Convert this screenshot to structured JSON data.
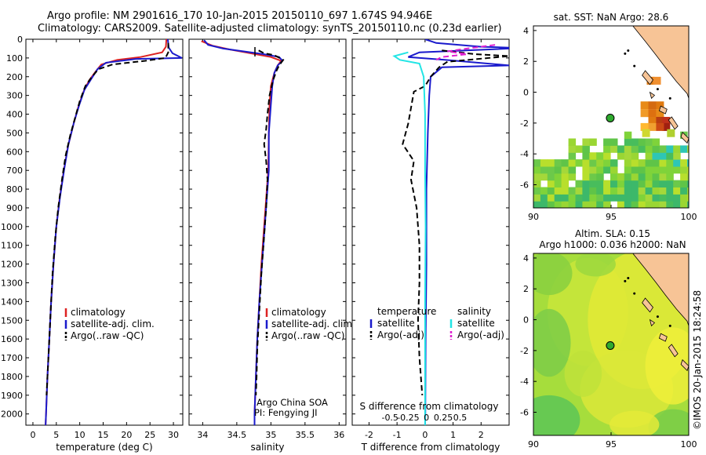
{
  "header": {
    "line1": "Argo profile: NM 2901616_170 10-Jan-2015 20150110_697 1.674S 94.946E",
    "line2": "Climatology: CARS2009. Satellite-adjusted climatology: synTS_20150110.nc (0.23d earlier)"
  },
  "watermark": "©IMOS 20-Jan-2015 18:24:58",
  "colors": {
    "red": "#dd2222",
    "blue": "#1a1acc",
    "black": "#000000",
    "cyan": "#22e5e5",
    "magenta": "#e022d0",
    "land": "#f7c496",
    "marker": "#2eaa2e"
  },
  "chart_data": [
    {
      "type": "line",
      "name": "temperature",
      "xlabel": "temperature (deg C)",
      "ylabel": "",
      "xlim": [
        -1.5,
        32
      ],
      "ylim": [
        2060,
        0
      ],
      "xticks": [
        0,
        5,
        10,
        15,
        20,
        25,
        30
      ],
      "yticks": [
        0,
        100,
        200,
        300,
        400,
        500,
        600,
        700,
        800,
        900,
        1000,
        1100,
        1200,
        1300,
        1400,
        1500,
        1600,
        1700,
        1800,
        1900,
        2000
      ],
      "legend": {
        "placement": "lower-middle",
        "entries": [
          "climatology",
          "satellite-adj. clim.",
          "Argo(..raw -QC)"
        ]
      },
      "series": [
        {
          "name": "climatology",
          "color": "red",
          "style": "solid",
          "points": [
            [
              28.5,
              0
            ],
            [
              28.4,
              40
            ],
            [
              27.6,
              70
            ],
            [
              23,
              95
            ],
            [
              18,
              110
            ],
            [
              14.6,
              135
            ],
            [
              13.3,
              175
            ],
            [
              12,
              220
            ],
            [
              10.8,
              280
            ],
            [
              9.7,
              360
            ],
            [
              8.7,
              450
            ],
            [
              7.5,
              570
            ],
            [
              6.6,
              700
            ],
            [
              5.7,
              850
            ],
            [
              5,
              1000
            ],
            [
              4.4,
              1200
            ],
            [
              3.9,
              1400
            ],
            [
              3.5,
              1600
            ],
            [
              3.1,
              1800
            ],
            [
              2.8,
              2000
            ],
            [
              2.7,
              2060
            ]
          ]
        },
        {
          "name": "satellite-adj. clim.",
          "color": "blue",
          "style": "solid",
          "points": [
            [
              28.8,
              0
            ],
            [
              29,
              45
            ],
            [
              29.8,
              75
            ],
            [
              31.8,
              100
            ],
            [
              22,
              105
            ],
            [
              15.6,
              125
            ],
            [
              13.8,
              160
            ],
            [
              12.5,
              210
            ],
            [
              11,
              270
            ],
            [
              9.9,
              350
            ],
            [
              8.8,
              440
            ],
            [
              7.6,
              560
            ],
            [
              6.7,
              690
            ],
            [
              5.8,
              840
            ],
            [
              5,
              1000
            ],
            [
              4.4,
              1200
            ],
            [
              3.9,
              1400
            ],
            [
              3.5,
              1600
            ],
            [
              3.1,
              1800
            ],
            [
              2.8,
              2000
            ],
            [
              2.7,
              2060
            ]
          ]
        },
        {
          "name": "Argo(..raw -QC)",
          "color": "black",
          "style": "dashed",
          "points": [
            [
              28.9,
              20
            ],
            [
              28.9,
              70
            ],
            [
              28.3,
              100
            ],
            [
              24,
              115
            ],
            [
              17,
              135
            ],
            [
              14,
              160
            ],
            [
              12.6,
              200
            ],
            [
              11.2,
              250
            ],
            [
              10,
              330
            ],
            [
              9,
              420
            ],
            [
              8,
              510
            ],
            [
              7,
              620
            ],
            [
              6.2,
              750
            ],
            [
              5.4,
              900
            ],
            [
              4.8,
              1050
            ],
            [
              4.2,
              1250
            ],
            [
              3.8,
              1450
            ],
            [
              3.4,
              1650
            ],
            [
              3.1,
              1800
            ],
            [
              2.9,
              1900
            ]
          ]
        }
      ]
    },
    {
      "type": "line",
      "name": "salinity",
      "xlabel": "salinity",
      "ylabel": "",
      "xlim": [
        33.8,
        36.1
      ],
      "ylim": [
        2060,
        0
      ],
      "xticks": [
        34,
        34.5,
        35,
        35.5,
        36
      ],
      "legend": {
        "placement": "lower-right",
        "entries": [
          "climatology",
          "satellite-adj. clim.",
          "Argo(..raw -QC)"
        ]
      },
      "annotations": [
        "Argo China SOA",
        "PI: Fengying JI"
      ],
      "series": [
        {
          "name": "climatology",
          "color": "red",
          "style": "solid",
          "points": [
            [
              33.98,
              10
            ],
            [
              34.15,
              35
            ],
            [
              34.4,
              55
            ],
            [
              34.7,
              75
            ],
            [
              35.0,
              95
            ],
            [
              35.15,
              115
            ],
            [
              35.1,
              140
            ],
            [
              35.05,
              180
            ],
            [
              35.0,
              250
            ],
            [
              34.98,
              350
            ],
            [
              34.97,
              500
            ],
            [
              34.96,
              700
            ],
            [
              34.93,
              850
            ],
            [
              34.9,
              1000
            ],
            [
              34.86,
              1200
            ],
            [
              34.83,
              1400
            ],
            [
              34.8,
              1600
            ],
            [
              34.78,
              1800
            ],
            [
              34.76,
              2000
            ],
            [
              34.76,
              2060
            ]
          ]
        },
        {
          "name": "satellite-adj. clim.",
          "color": "blue",
          "style": "solid",
          "points": [
            [
              34.02,
              5
            ],
            [
              34.08,
              30
            ],
            [
              34.3,
              50
            ],
            [
              34.6,
              65
            ],
            [
              34.9,
              80
            ],
            [
              35.12,
              95
            ],
            [
              35.17,
              115
            ],
            [
              35.1,
              140
            ],
            [
              35.05,
              180
            ],
            [
              35.02,
              250
            ],
            [
              35.0,
              350
            ],
            [
              34.97,
              500
            ],
            [
              34.97,
              700
            ],
            [
              34.94,
              850
            ],
            [
              34.91,
              1000
            ],
            [
              34.87,
              1200
            ],
            [
              34.83,
              1400
            ],
            [
              34.8,
              1600
            ],
            [
              34.78,
              1800
            ],
            [
              34.76,
              2000
            ],
            [
              34.76,
              2060
            ]
          ]
        },
        {
          "name": "Argo(..raw -QC)",
          "color": "black",
          "style": "dashed",
          "points": [
            [
              34.82,
              60
            ],
            [
              34.9,
              75
            ],
            [
              35.05,
              85
            ],
            [
              35.18,
              110
            ],
            [
              35.12,
              140
            ],
            [
              35.08,
              170
            ],
            [
              35.03,
              220
            ],
            [
              34.98,
              300
            ],
            [
              34.95,
              400
            ],
            [
              34.93,
              480
            ],
            [
              34.9,
              560
            ],
            [
              34.93,
              650
            ],
            [
              34.95,
              750
            ],
            [
              34.93,
              900
            ],
            [
              34.9,
              1050
            ],
            [
              34.86,
              1250
            ],
            [
              34.83,
              1450
            ],
            [
              34.8,
              1650
            ],
            [
              34.79,
              1800
            ],
            [
              34.78,
              1900
            ]
          ]
        }
      ]
    },
    {
      "type": "line",
      "name": "difference",
      "xlabel": "T difference from climatology",
      "xlabel_top": "S difference from climatology",
      "xlim": [
        -2.6,
        3.0
      ],
      "ylim": [
        2060,
        0
      ],
      "xticks": [
        -2,
        -1,
        0,
        1,
        2
      ],
      "xticklabels": [
        "-2",
        "-1",
        "0",
        "1",
        "2"
      ],
      "sticks_x": [
        -1.25,
        -0.6,
        0.05,
        0.65,
        1.25
      ],
      "sticklabels": [
        "-0.5",
        "-0.25",
        "0",
        "0.25",
        "0.5"
      ],
      "legend": {
        "placement": "lower-middle",
        "col1_title": "temperature",
        "col2_title": "salinity",
        "entries": [
          "satellite",
          "Argo(-adj)",
          "satellite",
          "Argo(-adj)"
        ]
      },
      "series": [
        {
          "name": "temperature satellite",
          "color": "blue",
          "style": "solid",
          "points": [
            [
              0,
              0
            ],
            [
              0.4,
              20
            ],
            [
              2.0,
              40
            ],
            [
              3.0,
              45
            ],
            [
              3.0,
              50
            ],
            [
              -0.2,
              70
            ],
            [
              -0.6,
              95
            ],
            [
              0.7,
              110
            ],
            [
              3.0,
              140
            ],
            [
              0.6,
              150
            ],
            [
              0.2,
              200
            ],
            [
              0.15,
              300
            ],
            [
              0.1,
              500
            ],
            [
              0.05,
              800
            ],
            [
              0.05,
              1200
            ],
            [
              0.02,
              1600
            ],
            [
              0.01,
              2000
            ],
            [
              0,
              2060
            ]
          ]
        },
        {
          "name": "temperature Argo(-adj)",
          "color": "black",
          "style": "dashed",
          "points": [
            [
              0.6,
              60
            ],
            [
              1.8,
              80
            ],
            [
              3.0,
              90
            ],
            [
              0.8,
              120
            ],
            [
              0.5,
              150
            ],
            [
              0.2,
              200
            ],
            [
              0.0,
              250
            ],
            [
              -0.4,
              280
            ],
            [
              -0.6,
              450
            ],
            [
              -0.8,
              560
            ],
            [
              -0.4,
              650
            ],
            [
              -0.5,
              750
            ],
            [
              -0.3,
              900
            ],
            [
              -0.2,
              1100
            ],
            [
              -0.2,
              1300
            ],
            [
              -0.25,
              1500
            ],
            [
              -0.2,
              1700
            ],
            [
              -0.1,
              1900
            ]
          ]
        },
        {
          "name": "salinity satellite",
          "color": "cyan",
          "style": "solid",
          "points": [
            [
              -0.6,
              70
            ],
            [
              -1.1,
              90
            ],
            [
              -0.9,
              110
            ],
            [
              -0.2,
              130
            ],
            [
              -0.05,
              200
            ],
            [
              0.0,
              400
            ],
            [
              0.0,
              700
            ],
            [
              0.02,
              1000
            ],
            [
              0.0,
              1400
            ],
            [
              0.0,
              1800
            ],
            [
              0.0,
              2060
            ]
          ]
        },
        {
          "name": "salinity Argo(-adj)",
          "color": "magenta",
          "style": "dashed",
          "points": [
            [
              2.5,
              30
            ],
            [
              1.5,
              50
            ],
            [
              0.8,
              65
            ],
            [
              1.5,
              80
            ],
            [
              0.6,
              95
            ],
            [
              0.4,
              110
            ]
          ]
        }
      ]
    },
    {
      "type": "heatmap",
      "name": "sst-map",
      "title": "sat. SST: NaN Argo: 28.6",
      "xlim": [
        90,
        100
      ],
      "ylim": [
        -7.5,
        4.3
      ],
      "xticks": [
        90,
        95,
        100
      ],
      "yticks": [
        4,
        2,
        0,
        -2,
        -4,
        -6
      ],
      "marker": [
        94.946,
        -1.674
      ]
    },
    {
      "type": "heatmap",
      "name": "sla-map",
      "title": "Altim. SLA: 0.15",
      "subtitle": "Argo h1000: 0.036 h2000: NaN",
      "xlim": [
        90,
        100
      ],
      "ylim": [
        -7.5,
        4.3
      ],
      "xticks": [
        90,
        95,
        100
      ],
      "yticks": [
        4,
        2,
        0,
        -2,
        -4,
        -6
      ],
      "marker": [
        94.946,
        -1.674
      ]
    }
  ]
}
